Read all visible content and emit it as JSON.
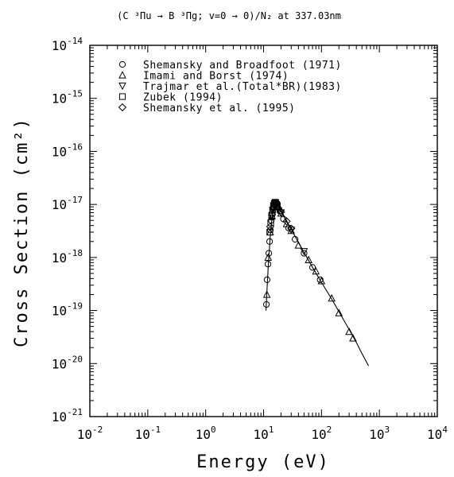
{
  "chart_data": {
    "type": "scatter",
    "title": "(C ³Πu → B ³Πg; v=0 → 0)/N₂ at 337.03nm",
    "xlabel": "Energy (eV)",
    "ylabel": "Cross Section (cm²)",
    "xscale": "log",
    "yscale": "log",
    "xlim": [
      0.01,
      10000
    ],
    "ylim": [
      1e-21,
      1e-14
    ],
    "x_ticks": [
      {
        "value": 0.01,
        "base": "10",
        "exp": "-2"
      },
      {
        "value": 0.1,
        "base": "10",
        "exp": "-1"
      },
      {
        "value": 1,
        "base": "10",
        "exp": "0"
      },
      {
        "value": 10,
        "base": "10",
        "exp": "1"
      },
      {
        "value": 100,
        "base": "10",
        "exp": "2"
      },
      {
        "value": 1000,
        "base": "10",
        "exp": "3"
      },
      {
        "value": 10000,
        "base": "10",
        "exp": "4"
      }
    ],
    "y_ticks": [
      {
        "value": 1e-21,
        "base": "10",
        "exp": "-21"
      },
      {
        "value": 1e-20,
        "base": "10",
        "exp": "-20"
      },
      {
        "value": 1e-19,
        "base": "10",
        "exp": "-19"
      },
      {
        "value": 1e-18,
        "base": "10",
        "exp": "-18"
      },
      {
        "value": 1e-17,
        "base": "10",
        "exp": "-17"
      },
      {
        "value": 1e-16,
        "base": "10",
        "exp": "-16"
      },
      {
        "value": 1e-15,
        "base": "10",
        "exp": "-15"
      },
      {
        "value": 1e-14,
        "base": "10",
        "exp": "-14"
      }
    ],
    "grid": false,
    "legend_position": "top-left",
    "series": [
      {
        "name": "Shemansky and Broadfoot (1971)",
        "marker": "circle",
        "points": [
          [
            11.2,
            1.3e-19
          ],
          [
            11.5,
            3.8e-19
          ],
          [
            11.9,
            7.5e-19
          ],
          [
            12.3,
            1.2e-18
          ],
          [
            12.7,
            2e-18
          ],
          [
            13.1,
            3.3e-18
          ],
          [
            13.6,
            5e-18
          ],
          [
            14.1,
            6.8e-18
          ],
          [
            14.6,
            8.5e-18
          ],
          [
            15.2,
            1e-17
          ],
          [
            16.0,
            1.05e-17
          ],
          [
            17.2,
            9.2e-18
          ],
          [
            19.0,
            7.5e-18
          ],
          [
            22.0,
            5.3e-18
          ],
          [
            27.0,
            3.6e-18
          ],
          [
            35.0,
            2.2e-18
          ],
          [
            50.0,
            1.2e-18
          ],
          [
            70.0,
            6.5e-19
          ],
          [
            95.0,
            3.8e-19
          ]
        ]
      },
      {
        "name": "Imami and Borst (1974)",
        "marker": "triangle-up",
        "points": [
          [
            11.4,
            2e-19
          ],
          [
            12.0,
            1e-18
          ],
          [
            13.0,
            3e-18
          ],
          [
            14.0,
            6e-18
          ],
          [
            15.0,
            9e-18
          ],
          [
            17.0,
            9e-18
          ],
          [
            20.0,
            6.8e-18
          ],
          [
            25.0,
            4.3e-18
          ],
          [
            30.0,
            3.2e-18
          ],
          [
            40.0,
            1.7e-18
          ],
          [
            60.0,
            9e-19
          ],
          [
            80.0,
            5.5e-19
          ],
          [
            100.0,
            3.6e-19
          ],
          [
            150.0,
            1.7e-19
          ],
          [
            200.0,
            9e-20
          ],
          [
            300.0,
            4e-20
          ],
          [
            350.0,
            3e-20
          ]
        ]
      },
      {
        "name": "Trajmar et al.(Total*BR)(1983)",
        "marker": "triangle-down",
        "points": [
          [
            14.5,
            7.8e-18
          ],
          [
            15.0,
            9.5e-18
          ],
          [
            17.0,
            9.5e-18
          ],
          [
            20.0,
            7e-18
          ],
          [
            30.0,
            3.3e-18
          ],
          [
            50.0,
            1.3e-18
          ]
        ]
      },
      {
        "name": "Zubek (1994)",
        "marker": "square",
        "points": [
          [
            12.8,
            3e-18
          ],
          [
            13.3,
            4.5e-18
          ],
          [
            13.8,
            6.2e-18
          ],
          [
            14.3,
            7.8e-18
          ],
          [
            14.8,
            9.2e-18
          ],
          [
            15.3,
            1.05e-17
          ],
          [
            15.8,
            1.1e-17
          ],
          [
            16.3,
            1.08e-17
          ],
          [
            16.8,
            1e-17
          ],
          [
            17.3,
            9.3e-18
          ]
        ]
      },
      {
        "name": "Shemansky et al. (1995)",
        "marker": "diamond",
        "points": [
          [
            13.0,
            3.8e-18
          ],
          [
            14.0,
            6.4e-18
          ],
          [
            15.0,
            9e-18
          ],
          [
            16.0,
            1e-17
          ],
          [
            18.0,
            8.5e-18
          ],
          [
            20.0,
            7.2e-18
          ],
          [
            25.0,
            4.8e-18
          ],
          [
            30.0,
            3.5e-18
          ]
        ]
      },
      {
        "name": "",
        "marker": "line",
        "points": [
          [
            11.0,
            1e-19
          ],
          [
            11.5,
            2.6e-19
          ],
          [
            12.0,
            6.5e-19
          ],
          [
            12.5,
            1.3e-18
          ],
          [
            13.0,
            2.4e-18
          ],
          [
            13.5,
            3.8e-18
          ],
          [
            14.0,
            5.5e-18
          ],
          [
            14.5,
            7.3e-18
          ],
          [
            15.0,
            9e-18
          ],
          [
            15.5,
            1.03e-17
          ],
          [
            16.0,
            1.07e-17
          ],
          [
            17.0,
            1e-17
          ],
          [
            18.0,
            9e-18
          ],
          [
            20.0,
            7.3e-18
          ],
          [
            25.0,
            4.7e-18
          ],
          [
            30.0,
            3.4e-18
          ],
          [
            40.0,
            1.9e-18
          ],
          [
            50.0,
            1.25e-18
          ],
          [
            70.0,
            6.5e-19
          ],
          [
            100.0,
            3.4e-19
          ],
          [
            150.0,
            1.65e-19
          ],
          [
            200.0,
            9.5e-20
          ],
          [
            300.0,
            4.4e-20
          ],
          [
            400.0,
            2.5e-20
          ],
          [
            500.0,
            1.55e-20
          ],
          [
            650.0,
            9e-21
          ]
        ]
      }
    ]
  }
}
